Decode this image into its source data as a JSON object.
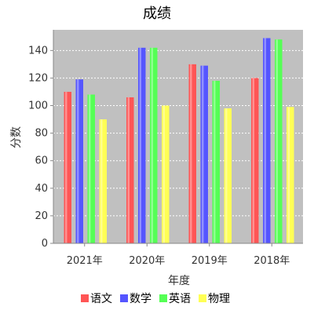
{
  "chart_data": {
    "type": "bar",
    "title": "成绩",
    "xlabel": "年度",
    "ylabel": "分数",
    "categories": [
      "2021年",
      "2020年",
      "2019年",
      "2018年"
    ],
    "series": [
      {
        "name": "语文",
        "color": "#ff5555",
        "values": [
          110,
          106,
          130,
          120
        ]
      },
      {
        "name": "数学",
        "color": "#5555ff",
        "values": [
          119,
          142,
          129,
          149
        ]
      },
      {
        "name": "英语",
        "color": "#55ff55",
        "values": [
          108,
          142,
          118,
          148
        ]
      },
      {
        "name": "物理",
        "color": "#ffff55",
        "values": [
          90,
          100,
          98,
          99
        ]
      }
    ],
    "ylim": [
      0,
      155
    ],
    "yticks": [
      0,
      20,
      40,
      60,
      80,
      100,
      120,
      140
    ],
    "grid": true,
    "plot_background": "#c0c0c0",
    "legend": "bottom"
  }
}
